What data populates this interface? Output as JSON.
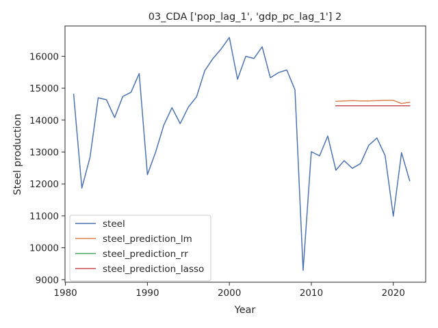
{
  "chart_data": {
    "type": "line",
    "title": "03_CDA ['pop_lag_1', 'gdp_pc_lag_1'] 2",
    "xlabel": "Year",
    "ylabel": "Steel production",
    "xlim": [
      1979.95,
      2023.95
    ],
    "ylim": [
      8920,
      16950
    ],
    "xticks": [
      1980,
      1990,
      2000,
      2010,
      2020
    ],
    "yticks": [
      9000,
      10000,
      11000,
      12000,
      13000,
      14000,
      15000,
      16000
    ],
    "legend_position": "lower-left",
    "grid": false,
    "series": [
      {
        "name": "steel",
        "color": "#4c72b0",
        "x": [
          1981,
          1982,
          1983,
          1984,
          1985,
          1986,
          1987,
          1988,
          1989,
          1990,
          1991,
          1992,
          1993,
          1994,
          1995,
          1996,
          1997,
          1998,
          1999,
          2000,
          2001,
          2002,
          2003,
          2004,
          2005,
          2006,
          2007,
          2008,
          2009,
          2010,
          2011,
          2012,
          2013,
          2014,
          2015,
          2016,
          2017,
          2018,
          2019,
          2020,
          2021,
          2022
        ],
        "y": [
          14810,
          11870,
          12830,
          14700,
          14640,
          14080,
          14740,
          14870,
          15460,
          12290,
          12990,
          13840,
          14390,
          13890,
          14410,
          14730,
          15550,
          15930,
          16230,
          16590,
          15280,
          16000,
          15930,
          16300,
          15330,
          15490,
          15570,
          14950,
          9290,
          13010,
          12880,
          13500,
          12430,
          12730,
          12490,
          12640,
          13210,
          13440,
          12890,
          10990,
          12980,
          12100
        ]
      },
      {
        "name": "steel_prediction_lm",
        "color": "#dd8452",
        "x": [
          2013,
          2014,
          2015,
          2016,
          2017,
          2018,
          2019,
          2020,
          2021,
          2022
        ],
        "y": [
          14590,
          14600,
          14610,
          14600,
          14600,
          14610,
          14620,
          14620,
          14520,
          14560
        ]
      },
      {
        "name": "steel_prediction_rr",
        "color": "#55a868",
        "x": [
          2013,
          2014,
          2015,
          2016,
          2017,
          2018,
          2019,
          2020,
          2021,
          2022
        ],
        "y": [
          14450,
          14450,
          14450,
          14450,
          14450,
          14450,
          14450,
          14450,
          14450,
          14450
        ]
      },
      {
        "name": "steel_prediction_lasso",
        "color": "#c44e52",
        "x": [
          2013,
          2014,
          2015,
          2016,
          2017,
          2018,
          2019,
          2020,
          2021,
          2022
        ],
        "y": [
          14450,
          14450,
          14450,
          14450,
          14450,
          14450,
          14450,
          14450,
          14450,
          14450
        ]
      }
    ]
  }
}
